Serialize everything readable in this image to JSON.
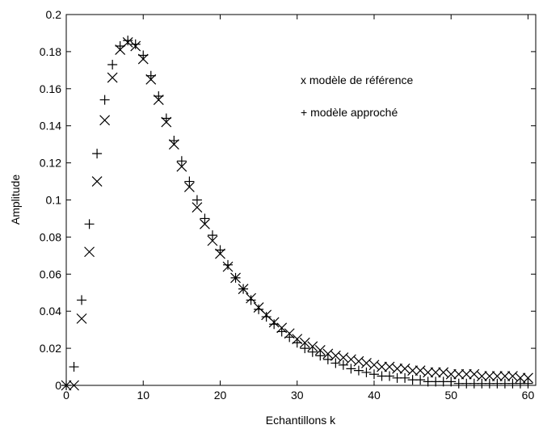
{
  "chart_data": {
    "type": "scatter",
    "xlabel": "Echantillons k",
    "ylabel": "Amplitude",
    "xlim": [
      0,
      61
    ],
    "ylim": [
      0,
      0.2
    ],
    "xticks": [
      "0",
      "10",
      "20",
      "30",
      "40",
      "50",
      "60"
    ],
    "yticks": [
      "0",
      "0.02",
      "0.04",
      "0.06",
      "0.08",
      "0.1",
      "0.12",
      "0.14",
      "0.16",
      "0.18",
      "0.2"
    ],
    "grid": false,
    "legend_position": "top-right",
    "series": [
      {
        "name": "modèle de référence",
        "legend_text": "x modèle de référence",
        "marker": "x",
        "x": [
          0,
          1,
          2,
          3,
          4,
          5,
          6,
          7,
          8,
          9,
          10,
          11,
          12,
          13,
          14,
          15,
          16,
          17,
          18,
          19,
          20,
          21,
          22,
          23,
          24,
          25,
          26,
          27,
          28,
          29,
          30,
          31,
          32,
          33,
          34,
          35,
          36,
          37,
          38,
          39,
          40,
          41,
          42,
          43,
          44,
          45,
          46,
          47,
          48,
          49,
          50,
          51,
          52,
          53,
          54,
          55,
          56,
          57,
          58,
          59,
          60
        ],
        "values": [
          0.0,
          0.0,
          0.036,
          0.072,
          0.11,
          0.143,
          0.166,
          0.181,
          0.185,
          0.183,
          0.176,
          0.165,
          0.154,
          0.142,
          0.13,
          0.118,
          0.107,
          0.096,
          0.087,
          0.078,
          0.071,
          0.064,
          0.058,
          0.052,
          0.047,
          0.042,
          0.038,
          0.034,
          0.031,
          0.028,
          0.025,
          0.023,
          0.021,
          0.019,
          0.017,
          0.016,
          0.015,
          0.014,
          0.013,
          0.012,
          0.011,
          0.01,
          0.01,
          0.009,
          0.009,
          0.008,
          0.008,
          0.007,
          0.007,
          0.007,
          0.006,
          0.006,
          0.006,
          0.006,
          0.005,
          0.005,
          0.005,
          0.005,
          0.005,
          0.004,
          0.004
        ]
      },
      {
        "name": "modèle approché",
        "legend_text": "+ modèle approché",
        "marker": "+",
        "x": [
          0,
          1,
          2,
          3,
          4,
          5,
          6,
          7,
          8,
          9,
          10,
          11,
          12,
          13,
          14,
          15,
          16,
          17,
          18,
          19,
          20,
          21,
          22,
          23,
          24,
          25,
          26,
          27,
          28,
          29,
          30,
          31,
          32,
          33,
          34,
          35,
          36,
          37,
          38,
          39,
          40,
          41,
          42,
          43,
          44,
          45,
          46,
          47,
          48,
          49,
          50,
          51,
          52,
          53,
          54,
          55,
          56,
          57,
          58,
          59,
          60
        ],
        "values": [
          0.0,
          0.01,
          0.046,
          0.087,
          0.125,
          0.154,
          0.173,
          0.183,
          0.186,
          0.184,
          0.178,
          0.167,
          0.156,
          0.144,
          0.132,
          0.121,
          0.11,
          0.1,
          0.09,
          0.081,
          0.073,
          0.065,
          0.058,
          0.052,
          0.046,
          0.041,
          0.037,
          0.033,
          0.029,
          0.026,
          0.023,
          0.02,
          0.018,
          0.016,
          0.014,
          0.012,
          0.011,
          0.009,
          0.008,
          0.007,
          0.006,
          0.005,
          0.005,
          0.004,
          0.004,
          0.003,
          0.003,
          0.002,
          0.002,
          0.002,
          0.002,
          0.001,
          0.001,
          0.001,
          0.001,
          0.001,
          0.001,
          0.001,
          0.001,
          0.001,
          0.001
        ]
      }
    ]
  }
}
